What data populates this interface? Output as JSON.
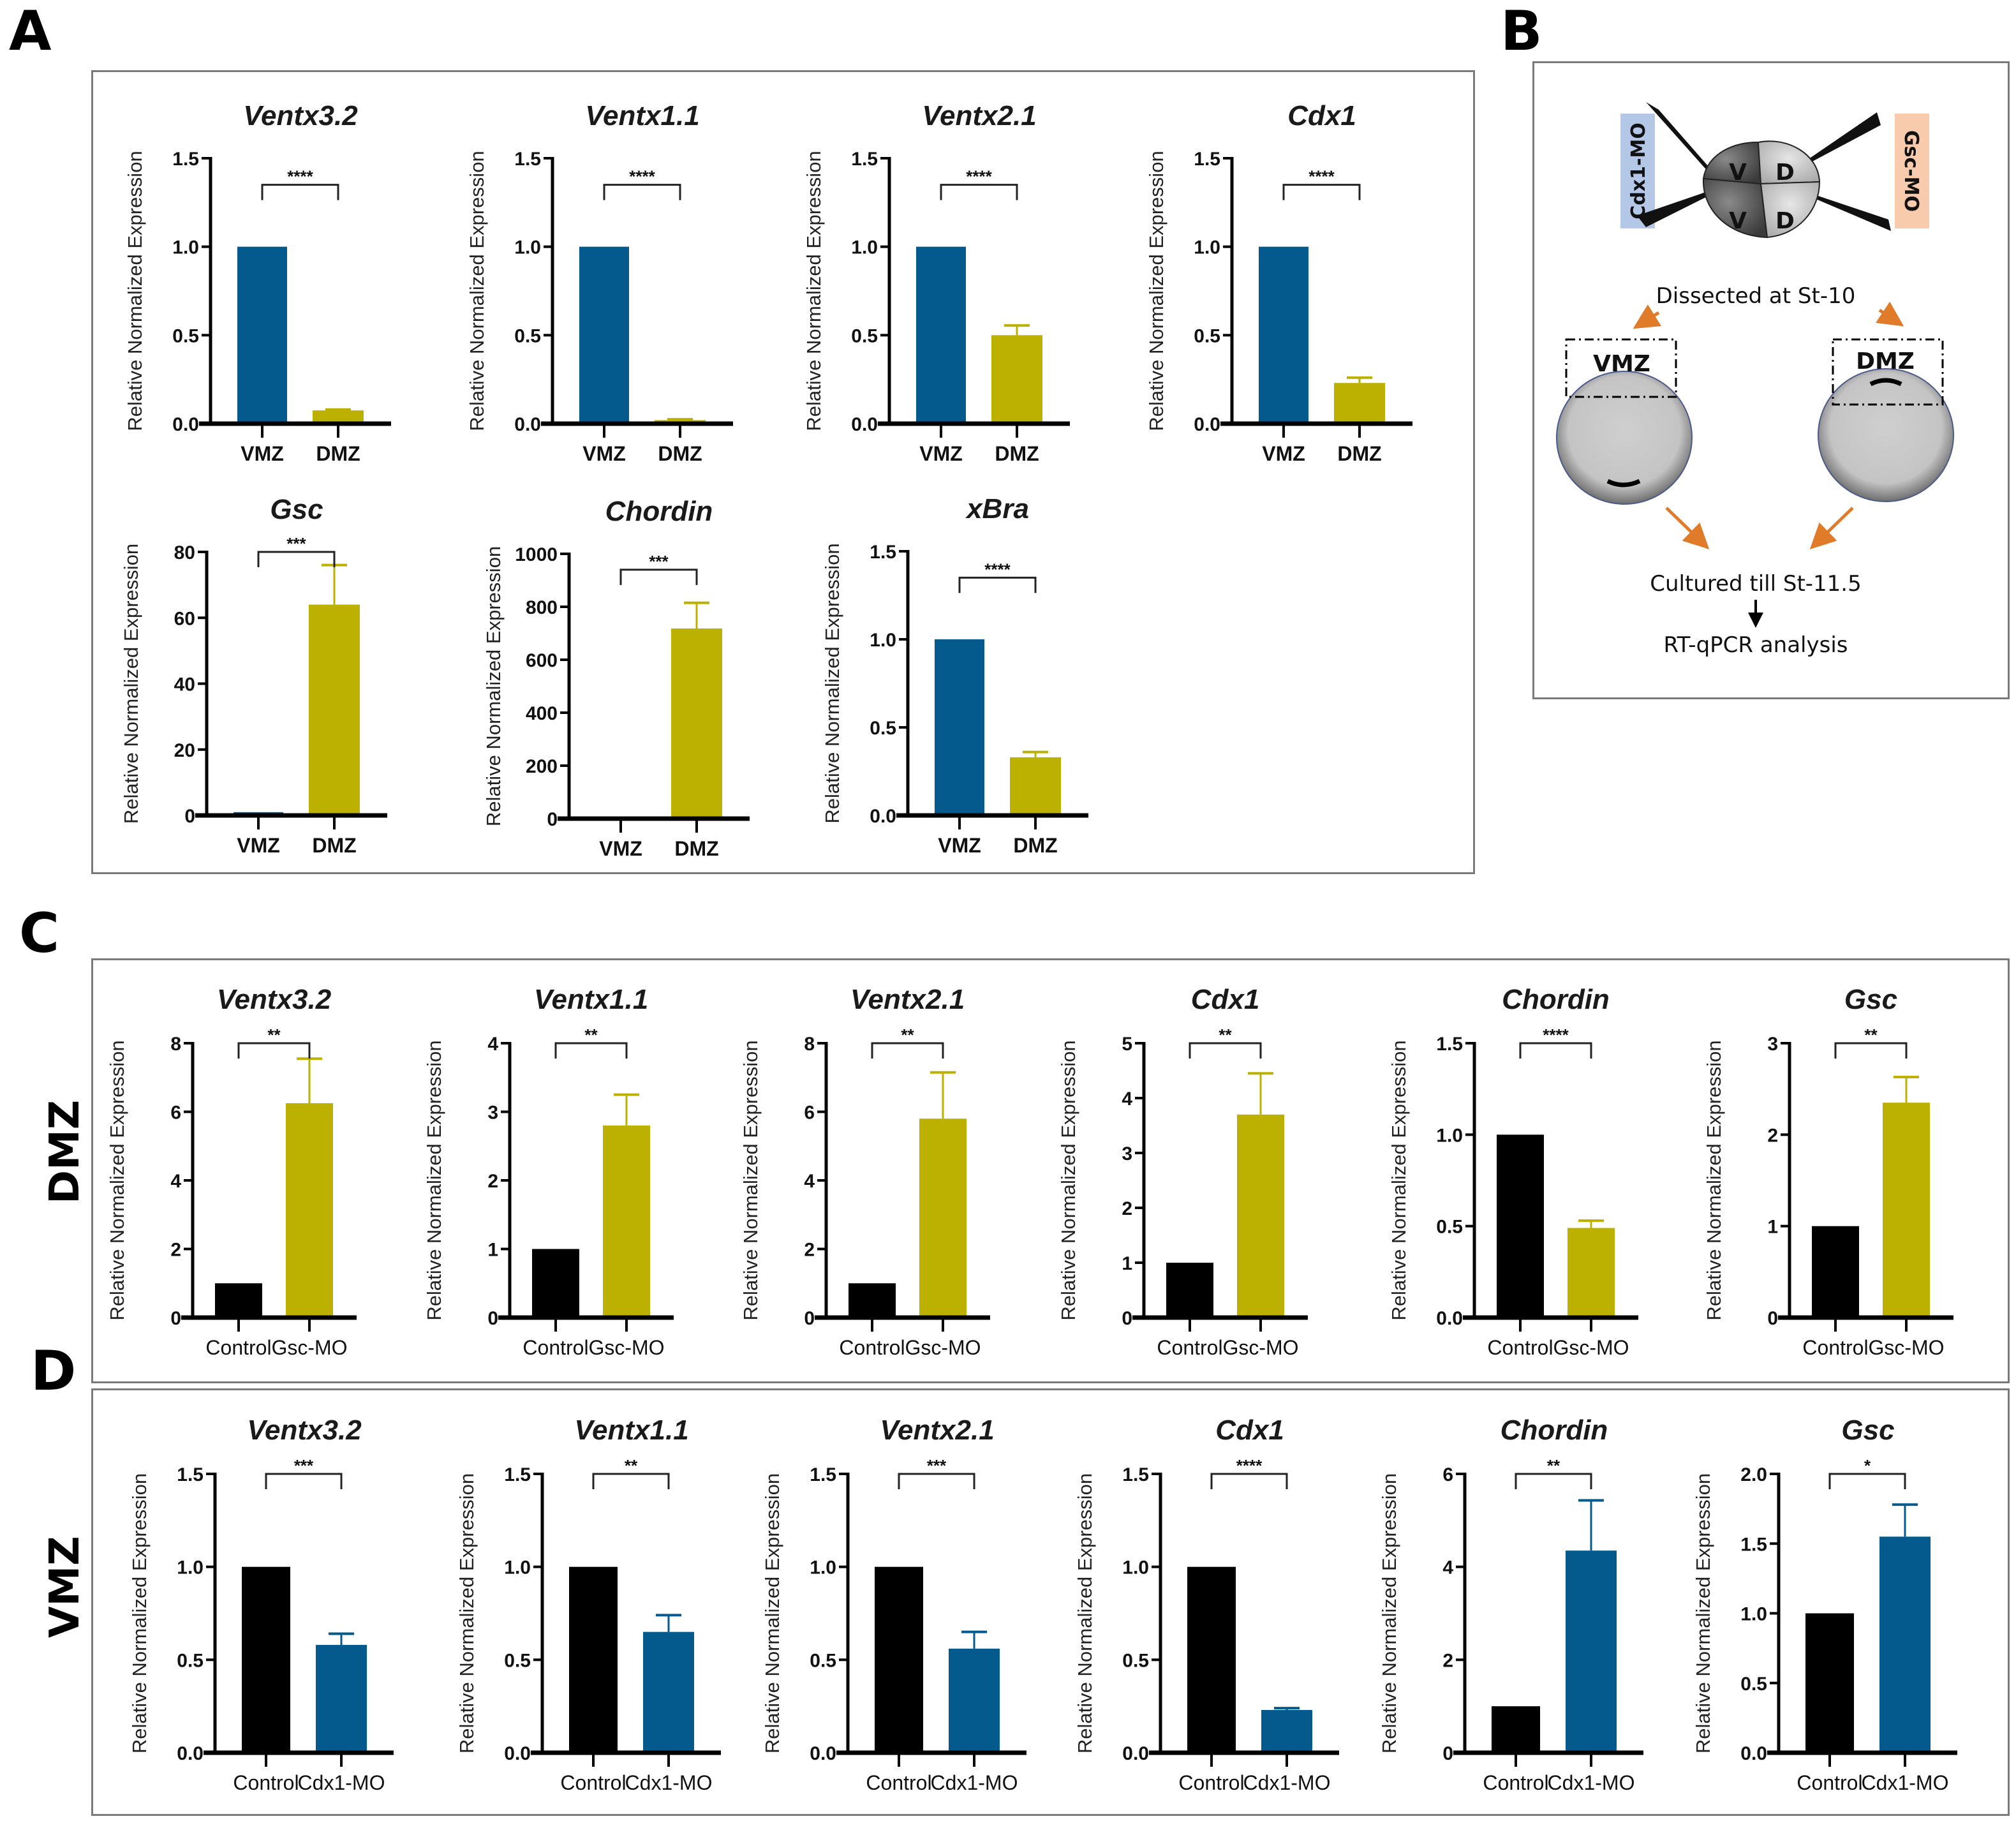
{
  "panels": {
    "A": {
      "letter": "A"
    },
    "B": {
      "letter": "B"
    },
    "C": {
      "letter": "C",
      "row_label": "DMZ"
    },
    "D": {
      "letter": "D",
      "row_label": "VMZ"
    }
  },
  "colors": {
    "vmz_blue": "#045a8d",
    "dmz_olive": "#bcb000",
    "control_black": "#000000",
    "cdx1_mo_box": "#b4c7e7",
    "gsc_mo_box": "#f8cbad",
    "arrow_orange": "#e07b2a",
    "embryo_gray": "#c8c8c8"
  },
  "diagram": {
    "left_injection_label": "Cdx1-MO",
    "right_injection_label": "Gsc-MO",
    "blastomere_labels": [
      "V",
      "D",
      "V",
      "D"
    ],
    "step1": "Dissected at St-10",
    "vmz_label": "VMZ",
    "dmz_label": "DMZ",
    "step2": "Cultured till St-11.5",
    "step3": "RT-qPCR analysis"
  },
  "chart_data": [
    {
      "panel": "A",
      "type": "bar",
      "title": "Ventx3.2",
      "ylabel": "Relative Normalized Expression",
      "categories": [
        "VMZ",
        "DMZ"
      ],
      "values": [
        1.0,
        0.075
      ],
      "errors": [
        0,
        0.005
      ],
      "colors": [
        "#045a8d",
        "#bcb000"
      ],
      "ylim": [
        0,
        1.5
      ],
      "yticks": [
        "0.0",
        "0.5",
        "1.0",
        "1.5"
      ],
      "ytick_values": [
        0,
        0.5,
        1.0,
        1.5
      ],
      "significance": "****",
      "bracket_at": 1.35
    },
    {
      "panel": "A",
      "type": "bar",
      "title": "Ventx1.1",
      "ylabel": "Relative Normalized Expression",
      "categories": [
        "VMZ",
        "DMZ"
      ],
      "values": [
        1.0,
        0.02
      ],
      "errors": [
        0,
        0.005
      ],
      "colors": [
        "#045a8d",
        "#bcb000"
      ],
      "ylim": [
        0,
        1.5
      ],
      "yticks": [
        "0.0",
        "0.5",
        "1.0",
        "1.5"
      ],
      "ytick_values": [
        0,
        0.5,
        1.0,
        1.5
      ],
      "significance": "****",
      "bracket_at": 1.35
    },
    {
      "panel": "A",
      "type": "bar",
      "title": "Ventx2.1",
      "ylabel": "Relative Normalized Expression",
      "categories": [
        "VMZ",
        "DMZ"
      ],
      "values": [
        1.0,
        0.5
      ],
      "errors": [
        0,
        0.055
      ],
      "colors": [
        "#045a8d",
        "#bcb000"
      ],
      "ylim": [
        0,
        1.5
      ],
      "yticks": [
        "0.0",
        "0.5",
        "1.0",
        "1.5"
      ],
      "ytick_values": [
        0,
        0.5,
        1.0,
        1.5
      ],
      "significance": "****",
      "bracket_at": 1.35
    },
    {
      "panel": "A",
      "type": "bar",
      "title": "Cdx1",
      "ylabel": "Relative Normalized Expression",
      "categories": [
        "VMZ",
        "DMZ"
      ],
      "values": [
        1.0,
        0.23
      ],
      "errors": [
        0,
        0.03
      ],
      "colors": [
        "#045a8d",
        "#bcb000"
      ],
      "ylim": [
        0,
        1.5
      ],
      "yticks": [
        "0.0",
        "0.5",
        "1.0",
        "1.5"
      ],
      "ytick_values": [
        0,
        0.5,
        1.0,
        1.5
      ],
      "significance": "****",
      "bracket_at": 1.35
    },
    {
      "panel": "A",
      "type": "bar",
      "title": "Gsc",
      "ylabel": "Relative Normalized Expression",
      "categories": [
        "VMZ",
        "DMZ"
      ],
      "values": [
        1.0,
        64.0
      ],
      "errors": [
        0,
        12.0
      ],
      "colors": [
        "#045a8d",
        "#bcb000"
      ],
      "ylim": [
        0,
        80
      ],
      "yticks": [
        "0",
        "20",
        "40",
        "60",
        "80"
      ],
      "ytick_values": [
        0,
        20,
        40,
        60,
        80
      ],
      "significance": "***",
      "bracket_at": 80
    },
    {
      "panel": "A",
      "type": "bar",
      "title": "Chordin",
      "ylabel": "Relative Normalized Expression",
      "categories": [
        "VMZ",
        "DMZ"
      ],
      "values": [
        1.0,
        718
      ],
      "errors": [
        0,
        97
      ],
      "colors": [
        "#045a8d",
        "#bcb000"
      ],
      "ylim": [
        0,
        1000
      ],
      "yticks": [
        "0",
        "200",
        "400",
        "600",
        "800",
        "1000"
      ],
      "ytick_values": [
        0,
        200,
        400,
        600,
        800,
        1000
      ],
      "significance": "***",
      "bracket_at": 940
    },
    {
      "panel": "A",
      "type": "bar",
      "title": "xBra",
      "ylabel": "Relative Normalized Expression",
      "categories": [
        "VMZ",
        "DMZ"
      ],
      "values": [
        1.0,
        0.33
      ],
      "errors": [
        0,
        0.03
      ],
      "colors": [
        "#045a8d",
        "#bcb000"
      ],
      "ylim": [
        0,
        1.5
      ],
      "yticks": [
        "0.0",
        "0.5",
        "1.0",
        "1.5"
      ],
      "ytick_values": [
        0,
        0.5,
        1.0,
        1.5
      ],
      "significance": "****",
      "bracket_at": 1.35
    },
    {
      "panel": "C",
      "type": "bar",
      "title": "Ventx3.2",
      "ylabel": "Relative Normalized Expression",
      "categories": [
        "Control",
        "Gsc-MO"
      ],
      "values": [
        1.0,
        6.25
      ],
      "errors": [
        0,
        1.3
      ],
      "colors": [
        "#000000",
        "#bcb000"
      ],
      "ylim": [
        0,
        8
      ],
      "yticks": [
        "0",
        "2",
        "4",
        "6",
        "8"
      ],
      "ytick_values": [
        0,
        2,
        4,
        6,
        8
      ],
      "significance": "**",
      "bracket_at": 8
    },
    {
      "panel": "C",
      "type": "bar",
      "title": "Ventx1.1",
      "ylabel": "Relative Normalized Expression",
      "categories": [
        "Control",
        "Gsc-MO"
      ],
      "values": [
        1.0,
        2.8
      ],
      "errors": [
        0,
        0.45
      ],
      "colors": [
        "#000000",
        "#bcb000"
      ],
      "ylim": [
        0,
        4
      ],
      "yticks": [
        "0",
        "1",
        "2",
        "3",
        "4"
      ],
      "ytick_values": [
        0,
        1,
        2,
        3,
        4
      ],
      "significance": "**",
      "bracket_at": 4
    },
    {
      "panel": "C",
      "type": "bar",
      "title": "Ventx2.1",
      "ylabel": "Relative Normalized Expression",
      "categories": [
        "Control",
        "Gsc-MO"
      ],
      "values": [
        1.0,
        5.8
      ],
      "errors": [
        0,
        1.35
      ],
      "colors": [
        "#000000",
        "#bcb000"
      ],
      "ylim": [
        0,
        8
      ],
      "yticks": [
        "0",
        "2",
        "4",
        "6",
        "8"
      ],
      "ytick_values": [
        0,
        2,
        4,
        6,
        8
      ],
      "significance": "**",
      "bracket_at": 8
    },
    {
      "panel": "C",
      "type": "bar",
      "title": "Cdx1",
      "ylabel": "Relative Normalized Expression",
      "categories": [
        "Control",
        "Gsc-MO"
      ],
      "values": [
        1.0,
        3.7
      ],
      "errors": [
        0,
        0.75
      ],
      "colors": [
        "#000000",
        "#bcb000"
      ],
      "ylim": [
        0,
        5
      ],
      "yticks": [
        "0",
        "1",
        "2",
        "3",
        "4",
        "5"
      ],
      "ytick_values": [
        0,
        1,
        2,
        3,
        4,
        5
      ],
      "significance": "**",
      "bracket_at": 5
    },
    {
      "panel": "C",
      "type": "bar",
      "title": "Chordin",
      "ylabel": "Relative Normalized Expression",
      "categories": [
        "Control",
        "Gsc-MO"
      ],
      "values": [
        1.0,
        0.49
      ],
      "errors": [
        0,
        0.04
      ],
      "colors": [
        "#000000",
        "#bcb000"
      ],
      "ylim": [
        0,
        1.5
      ],
      "yticks": [
        "0.0",
        "0.5",
        "1.0",
        "1.5"
      ],
      "ytick_values": [
        0,
        0.5,
        1.0,
        1.5
      ],
      "significance": "****",
      "bracket_at": 1.5
    },
    {
      "panel": "C",
      "type": "bar",
      "title": "Gsc",
      "ylabel": "Relative Normalized Expression",
      "categories": [
        "Control",
        "Gsc-MO"
      ],
      "values": [
        1.0,
        2.35
      ],
      "errors": [
        0,
        0.28
      ],
      "colors": [
        "#000000",
        "#bcb000"
      ],
      "ylim": [
        0,
        3
      ],
      "yticks": [
        "0",
        "1",
        "2",
        "3"
      ],
      "ytick_values": [
        0,
        1,
        2,
        3
      ],
      "significance": "**",
      "bracket_at": 3
    },
    {
      "panel": "D",
      "type": "bar",
      "title": "Ventx3.2",
      "ylabel": "Relative Normalized Expression",
      "categories": [
        "Control",
        "Cdx1-MO"
      ],
      "values": [
        1.0,
        0.58
      ],
      "errors": [
        0,
        0.06
      ],
      "colors": [
        "#000000",
        "#045a8d"
      ],
      "ylim": [
        0,
        1.5
      ],
      "yticks": [
        "0.0",
        "0.5",
        "1.0",
        "1.5"
      ],
      "ytick_values": [
        0,
        0.5,
        1.0,
        1.5
      ],
      "significance": "***",
      "bracket_at": 1.5
    },
    {
      "panel": "D",
      "type": "bar",
      "title": "Ventx1.1",
      "ylabel": "Relative Normalized Expression",
      "categories": [
        "Control",
        "Cdx1-MO"
      ],
      "values": [
        1.0,
        0.65
      ],
      "errors": [
        0,
        0.09
      ],
      "colors": [
        "#000000",
        "#045a8d"
      ],
      "ylim": [
        0,
        1.5
      ],
      "yticks": [
        "0.0",
        "0.5",
        "1.0",
        "1.5"
      ],
      "ytick_values": [
        0,
        0.5,
        1.0,
        1.5
      ],
      "significance": "**",
      "bracket_at": 1.5
    },
    {
      "panel": "D",
      "type": "bar",
      "title": "Ventx2.1",
      "ylabel": "Relative Normalized Expression",
      "categories": [
        "Control",
        "Cdx1-MO"
      ],
      "values": [
        1.0,
        0.56
      ],
      "errors": [
        0,
        0.09
      ],
      "colors": [
        "#000000",
        "#045a8d"
      ],
      "ylim": [
        0,
        1.5
      ],
      "yticks": [
        "0.0",
        "0.5",
        "1.0",
        "1.5"
      ],
      "ytick_values": [
        0,
        0.5,
        1.0,
        1.5
      ],
      "significance": "***",
      "bracket_at": 1.5
    },
    {
      "panel": "D",
      "type": "bar",
      "title": "Cdx1",
      "ylabel": "Relative Normalized Expression",
      "categories": [
        "Control",
        "Cdx1-MO"
      ],
      "values": [
        1.0,
        0.23
      ],
      "errors": [
        0,
        0.01
      ],
      "colors": [
        "#000000",
        "#045a8d"
      ],
      "ylim": [
        0,
        1.5
      ],
      "yticks": [
        "0.0",
        "0.5",
        "1.0",
        "1.5"
      ],
      "ytick_values": [
        0,
        0.5,
        1.0,
        1.5
      ],
      "significance": "****",
      "bracket_at": 1.5
    },
    {
      "panel": "D",
      "type": "bar",
      "title": "Chordin",
      "ylabel": "Relative Normalized Expression",
      "categories": [
        "Control",
        "Cdx1-MO"
      ],
      "values": [
        1.0,
        4.35
      ],
      "errors": [
        0,
        1.08
      ],
      "colors": [
        "#000000",
        "#045a8d"
      ],
      "ylim": [
        0,
        6
      ],
      "yticks": [
        "0",
        "2",
        "4",
        "6"
      ],
      "ytick_values": [
        0,
        2,
        4,
        6
      ],
      "significance": "**",
      "bracket_at": 6
    },
    {
      "panel": "D",
      "type": "bar",
      "title": "Gsc",
      "ylabel": "Relative Normalized Expression",
      "categories": [
        "Control",
        "Cdx1-MO"
      ],
      "values": [
        1.0,
        1.55
      ],
      "errors": [
        0,
        0.23
      ],
      "colors": [
        "#000000",
        "#045a8d"
      ],
      "ylim": [
        0,
        2.0
      ],
      "yticks": [
        "0.0",
        "0.5",
        "1.0",
        "1.5",
        "2.0"
      ],
      "ytick_values": [
        0,
        0.5,
        1.0,
        1.5,
        2.0
      ],
      "significance": "*",
      "bracket_at": 2.0
    }
  ]
}
